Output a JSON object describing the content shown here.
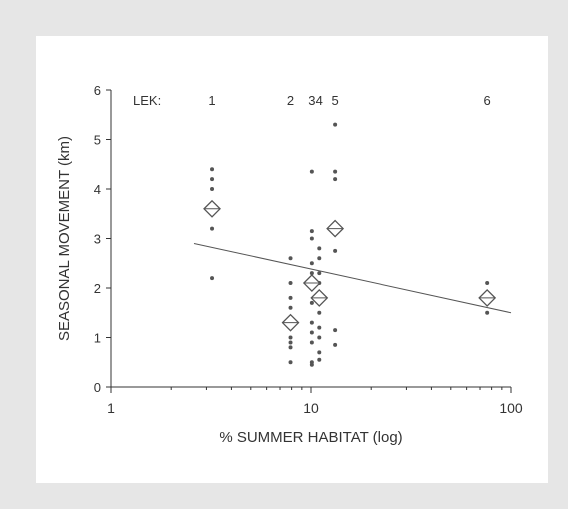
{
  "chart_data": {
    "type": "scatter",
    "xscale": "log",
    "xlim": [
      1,
      100
    ],
    "ylim": [
      0,
      6
    ],
    "xlabel": "% SUMMER HABITAT (log)",
    "ylabel": "SEASONAL  MOVEMENT  (km)",
    "xticks": [
      1,
      10,
      100
    ],
    "xtick_labels": [
      "1",
      "10",
      "100"
    ],
    "yticks": [
      0,
      1,
      2,
      3,
      4,
      5,
      6
    ],
    "ytick_labels": [
      "0",
      "1",
      "2",
      "3",
      "4",
      "5",
      "6"
    ],
    "grid": false,
    "lek_prefix": "LEK:",
    "leks": [
      {
        "label": "1",
        "x": 3.2,
        "mean": 3.6,
        "points": [
          4.4,
          4.2,
          4.0,
          3.7,
          3.2,
          2.2
        ]
      },
      {
        "label": "2",
        "x": 7.9,
        "mean": 1.3,
        "points": [
          2.6,
          2.1,
          1.8,
          1.6,
          1.4,
          1.0,
          0.9,
          0.8,
          0.5
        ]
      },
      {
        "label": "3",
        "x": 10.1,
        "mean": 2.1,
        "points": [
          4.35,
          3.15,
          3.0,
          2.5,
          2.3,
          2.2,
          1.7,
          1.3,
          1.1,
          0.9,
          0.5,
          0.45
        ]
      },
      {
        "label": "4",
        "x": 11.0,
        "mean": 1.8,
        "points": [
          2.8,
          2.6,
          2.3,
          2.1,
          1.5,
          1.2,
          1.0,
          0.7,
          0.55
        ]
      },
      {
        "label": "5",
        "x": 13.2,
        "mean": 3.2,
        "points": [
          5.3,
          4.35,
          4.2,
          2.75,
          1.15,
          0.85
        ]
      },
      {
        "label": "6",
        "x": 76,
        "mean": 1.8,
        "points": [
          2.1,
          1.5
        ]
      }
    ],
    "regression": {
      "x": [
        2.6,
        100
      ],
      "y": [
        2.9,
        1.5
      ]
    },
    "colors": {
      "points": "#555555",
      "axis": "#333333",
      "line": "#555555",
      "mean_marker": "#555555"
    }
  }
}
